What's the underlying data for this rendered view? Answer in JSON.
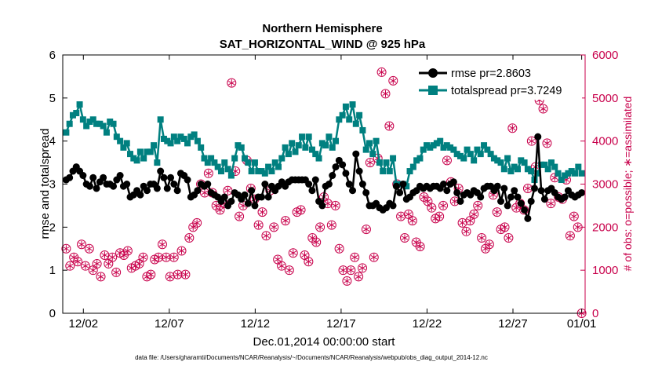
{
  "chart_data": {
    "type": "line",
    "title": "Northern Hemisphere",
    "subtitle": "SAT_HORIZONTAL_WIND @ 925 hPa",
    "xlabel": "Dec.01,2014 00:00:00 start",
    "ylabel": "rmse and totalspread",
    "y2label": "# of obs: o=possible; ∗=assimilated",
    "footer": "data file: /Users/gharamti/Documents/NCAR/Reanalysis/~/Documents/NCAR/Reanalysis/webpub/obs_diag_output_2014-12.nc",
    "xlim": [
      0.8,
      31.2
    ],
    "ylim": [
      0,
      6
    ],
    "y2lim": [
      0,
      6000
    ],
    "x_ticks": [
      2,
      7,
      12,
      17,
      22,
      27,
      31
    ],
    "x_tick_labels": [
      "12/02",
      "12/07",
      "12/12",
      "12/17",
      "12/22",
      "12/27",
      "01/01"
    ],
    "y_ticks": [
      0,
      1,
      2,
      3,
      4,
      5,
      6
    ],
    "y_tick_labels": [
      "0",
      "1",
      "2",
      "3",
      "4",
      "5",
      "6"
    ],
    "y2_ticks": [
      0,
      1000,
      2000,
      3000,
      4000,
      5000,
      6000
    ],
    "y2_tick_labels": [
      "0",
      "1000",
      "2000",
      "3000",
      "4000",
      "5000",
      "6000"
    ],
    "legend_position": "top-right",
    "colors": {
      "rmse": "#000000",
      "spread": "#008080",
      "obs": "#c8004b"
    },
    "series": [
      {
        "name": "rmse pr=2.8603",
        "values": [
          3.1,
          3.15,
          3.3,
          3.4,
          3.3,
          3.2,
          3.0,
          2.95,
          3.15,
          2.9,
          3.05,
          3.15,
          3.0,
          3.0,
          2.95,
          3.1,
          3.2,
          2.95,
          3.0,
          2.7,
          2.75,
          2.85,
          2.75,
          2.95,
          2.85,
          3.0,
          3.0,
          2.9,
          3.3,
          3.15,
          2.9,
          3.15,
          3.0,
          2.85,
          3.25,
          3.2,
          3.1,
          2.7,
          2.75,
          2.85,
          3.0,
          2.95,
          3.0,
          2.8,
          2.75,
          2.7,
          2.6,
          2.7,
          2.5,
          2.6,
          2.8,
          2.75,
          2.65,
          2.75,
          2.55,
          2.85,
          2.5,
          2.7,
          2.7,
          3.0,
          2.7,
          2.95,
          2.85,
          2.95,
          3.05,
          2.95,
          3.05,
          3.1,
          3.1,
          3.1,
          3.1,
          3.1,
          3.0,
          2.85,
          3.1,
          2.6,
          2.5,
          2.95,
          3.0,
          3.2,
          3.4,
          3.55,
          3.45,
          3.25,
          3.0,
          2.85,
          3.7,
          3.3,
          3.0,
          2.8,
          2.5,
          2.5,
          2.55,
          2.45,
          2.4,
          2.45,
          2.55,
          2.5,
          2.95,
          2.8,
          3.0,
          2.65,
          2.7,
          2.8,
          2.85,
          2.95,
          2.9,
          2.95,
          2.9,
          2.95,
          2.95,
          2.9,
          3.0,
          2.85,
          3.0,
          3.05,
          2.8,
          2.6,
          2.75,
          2.8,
          2.75,
          2.85,
          2.8,
          2.7,
          2.9,
          2.95,
          2.95,
          2.85,
          2.95,
          2.6,
          2.9,
          2.5,
          2.7,
          2.85,
          2.7,
          2.55,
          2.4,
          2.2,
          2.6,
          2.9,
          4.1,
          2.85,
          2.65,
          2.85,
          2.9,
          2.8,
          2.7,
          2.65,
          2.7,
          2.85,
          2.75,
          2.7,
          2.75,
          2.8
        ]
      },
      {
        "name": "totalspread pr=3.7249",
        "values": [
          4.2,
          4.4,
          4.6,
          4.65,
          4.85,
          4.5,
          4.35,
          4.45,
          4.5,
          4.4,
          4.4,
          4.35,
          4.2,
          4.45,
          4.4,
          4.1,
          4.0,
          3.85,
          3.95,
          3.7,
          3.6,
          3.55,
          3.75,
          3.6,
          3.75,
          3.75,
          3.9,
          3.5,
          4.5,
          4.05,
          4.0,
          3.95,
          4.1,
          4.0,
          4.1,
          4.05,
          3.95,
          4.1,
          4.15,
          4.0,
          3.85,
          3.6,
          3.5,
          3.6,
          3.5,
          3.4,
          3.3,
          3.5,
          3.35,
          3.2,
          3.6,
          3.9,
          3.85,
          3.6,
          3.5,
          3.3,
          3.5,
          3.3,
          3.3,
          3.25,
          3.4,
          3.3,
          3.5,
          3.4,
          3.6,
          3.85,
          3.7,
          3.95,
          3.75,
          3.9,
          4.1,
          3.85,
          4.1,
          3.8,
          3.7,
          3.6,
          3.95,
          3.9,
          4.1,
          3.85,
          4.0,
          4.5,
          4.6,
          4.8,
          4.5,
          4.85,
          4.4,
          4.6,
          4.25,
          3.8,
          3.95,
          3.7,
          4.0,
          3.5,
          3.3,
          3.5,
          3.3,
          3.6,
          3.0,
          3.0,
          3.0,
          2.95,
          3.3,
          3.4,
          3.55,
          3.6,
          3.8,
          3.9,
          3.85,
          3.9,
          3.95,
          4.0,
          3.85,
          3.9,
          3.85,
          3.8,
          3.7,
          3.65,
          3.6,
          3.8,
          3.7,
          3.55,
          3.8,
          3.7,
          3.9,
          3.8,
          3.7,
          3.6,
          3.55,
          3.5,
          3.35,
          3.6,
          3.3,
          3.4,
          3.35,
          3.55,
          3.5,
          3.35,
          3.3,
          3.1,
          3.25,
          3.45,
          3.45,
          3.35,
          3.5,
          3.4,
          3.25,
          3.1,
          3.2,
          3.25,
          3.3,
          3.25,
          3.4,
          3.25
        ]
      }
    ],
    "obs_possible": [
      1500,
      1100,
      1300,
      1200,
      1600,
      1100,
      1500,
      1000,
      1150,
      850,
      1350,
      1150,
      1300,
      950,
      1400,
      1350,
      1450,
      1050,
      1100,
      1150,
      1300,
      850,
      900,
      1250,
      1300,
      1600,
      1300,
      850,
      1300,
      900,
      1450,
      900,
      1750,
      2000,
      2100,
      3000,
      2800,
      3250,
      2800,
      2500,
      2400,
      2550,
      2850,
      5350,
      3300,
      2250,
      2500,
      3550,
      2900,
      2650,
      2050,
      2350,
      1800,
      2850,
      2000,
      1250,
      1100,
      2150,
      1000,
      1400,
      2350,
      2400,
      1350,
      1200,
      1750,
      1650,
      2000,
      2700,
      2550,
      2050,
      2500,
      1500,
      1000,
      750,
      1000,
      1300,
      850,
      1050,
      1950,
      3500,
      1300,
      3600,
      5600,
      5100,
      4350,
      5400,
      3000,
      2250,
      1750,
      2300,
      2150,
      1650,
      1550,
      2700,
      2600,
      2450,
      2200,
      2250,
      2500,
      3550,
      3050,
      2600,
      2900,
      2100,
      1900,
      2150,
      2300,
      2500,
      1750,
      1500,
      1600,
      2750,
      2350,
      1950,
      2000,
      1750,
      4300,
      2450,
      2550,
      2400,
      2900,
      4000,
      3400,
      4950,
      4750,
      3950,
      2550,
      3150,
      2700,
      2650,
      3100,
      1800,
      2250,
      2000,
      0
    ]
  }
}
